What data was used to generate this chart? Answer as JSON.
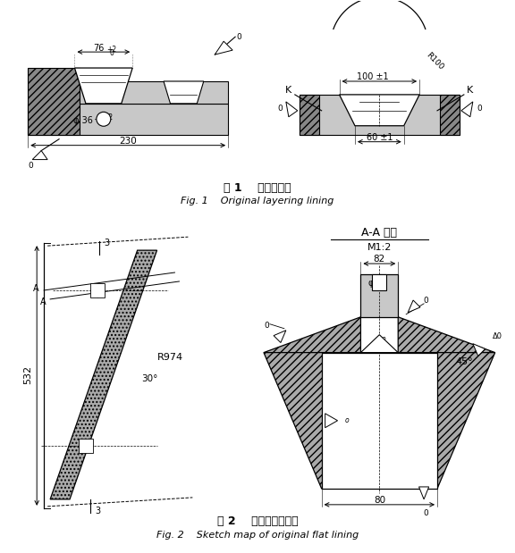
{
  "fig_width": 5.76,
  "fig_height": 6.19,
  "bg_color": "#ffffff",
  "fig1_caption_cn": "图 1    原压条衬板",
  "fig1_caption_en": "Fig. 1    Original layering lining",
  "fig2_caption_cn": "图 2    原平衬板示意图",
  "fig2_caption_en": "Fig. 2    Sketch map of original flat lining",
  "aa_title": "A-A 旋転",
  "m12": "M1:2"
}
